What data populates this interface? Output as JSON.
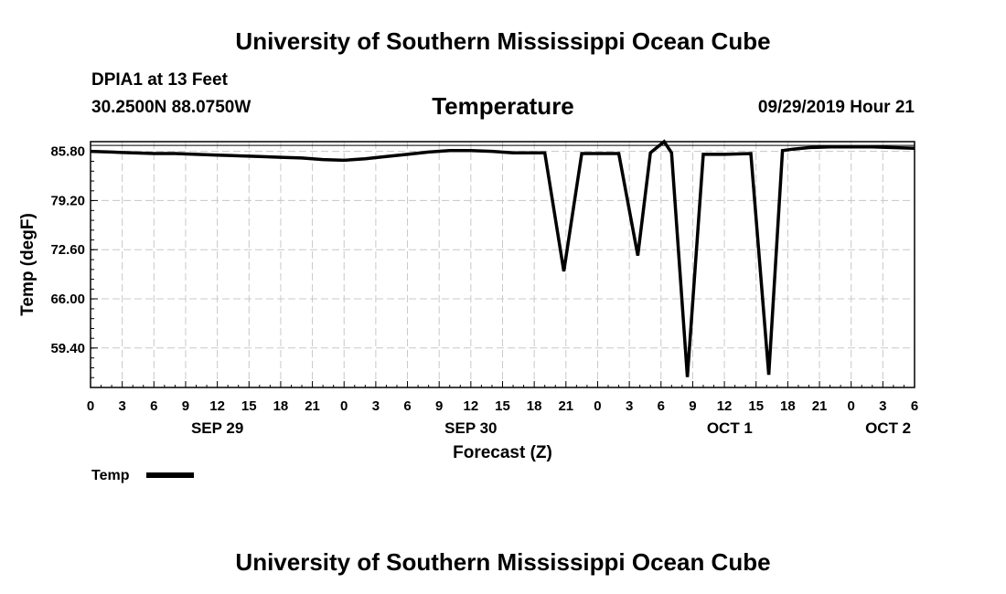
{
  "header": {
    "top_title": "University of Southern Mississippi Ocean Cube",
    "station": "DPIA1 at 13 Feet",
    "coords": "30.2500N 88.0750W",
    "date_label": "09/29/2019 Hour 21",
    "bottom_title": "University of Southern Mississippi Ocean Cube"
  },
  "chart_data": {
    "type": "line",
    "title": "Temperature",
    "xlabel": "Forecast (Z)",
    "ylabel": "Temp (degF)",
    "xlim": [
      0,
      78
    ],
    "ylim": [
      54.1,
      87.1
    ],
    "yticks": [
      "85.80",
      "79.20",
      "72.60",
      "66.00",
      "59.40"
    ],
    "ytick_values": [
      85.8,
      79.2,
      72.6,
      66.0,
      59.4
    ],
    "xticks": [
      {
        "h": 0,
        "label": "0"
      },
      {
        "h": 3,
        "label": "3"
      },
      {
        "h": 6,
        "label": "6"
      },
      {
        "h": 9,
        "label": "9"
      },
      {
        "h": 12,
        "label": "12"
      },
      {
        "h": 15,
        "label": "15"
      },
      {
        "h": 18,
        "label": "18"
      },
      {
        "h": 21,
        "label": "21"
      },
      {
        "h": 24,
        "label": "0"
      },
      {
        "h": 27,
        "label": "3"
      },
      {
        "h": 30,
        "label": "6"
      },
      {
        "h": 33,
        "label": "9"
      },
      {
        "h": 36,
        "label": "12"
      },
      {
        "h": 39,
        "label": "15"
      },
      {
        "h": 42,
        "label": "18"
      },
      {
        "h": 45,
        "label": "21"
      },
      {
        "h": 48,
        "label": "0"
      },
      {
        "h": 51,
        "label": "3"
      },
      {
        "h": 54,
        "label": "6"
      },
      {
        "h": 57,
        "label": "9"
      },
      {
        "h": 60,
        "label": "12"
      },
      {
        "h": 63,
        "label": "15"
      },
      {
        "h": 66,
        "label": "18"
      },
      {
        "h": 69,
        "label": "21"
      },
      {
        "h": 72,
        "label": "0"
      },
      {
        "h": 75,
        "label": "3"
      },
      {
        "h": 78,
        "label": "6"
      }
    ],
    "day_labels": [
      {
        "h": 12,
        "label": "SEP 29"
      },
      {
        "h": 36,
        "label": "SEP 30"
      },
      {
        "h": 60.5,
        "label": "OCT 1"
      },
      {
        "h": 75.5,
        "label": "OCT 2"
      }
    ],
    "grid": true,
    "reference_line": 86.6,
    "legend": {
      "label": "Temp",
      "position": "bottom-left"
    },
    "series": [
      {
        "name": "Temp",
        "x": [
          0,
          2,
          4,
          6,
          8,
          10,
          12,
          14,
          16,
          18,
          20,
          22,
          24,
          26,
          28,
          30,
          32,
          34,
          36,
          38,
          40,
          42,
          43,
          44.8,
          46.5,
          48,
          50,
          51.8,
          53,
          54.3,
          55,
          56.5,
          58,
          60,
          62.5,
          64.2,
          65.5,
          66.5,
          68,
          70,
          72,
          74,
          76,
          78
        ],
        "y": [
          85.8,
          85.7,
          85.6,
          85.5,
          85.5,
          85.4,
          85.3,
          85.2,
          85.1,
          85.0,
          84.9,
          84.7,
          84.6,
          84.8,
          85.1,
          85.4,
          85.7,
          85.9,
          85.9,
          85.8,
          85.6,
          85.6,
          85.6,
          69.7,
          85.5,
          85.5,
          85.5,
          71.8,
          85.6,
          87.1,
          85.6,
          55.5,
          85.4,
          85.4,
          85.5,
          55.8,
          85.9,
          86.1,
          86.3,
          86.4,
          86.4,
          86.4,
          86.3,
          86.2
        ]
      }
    ]
  }
}
